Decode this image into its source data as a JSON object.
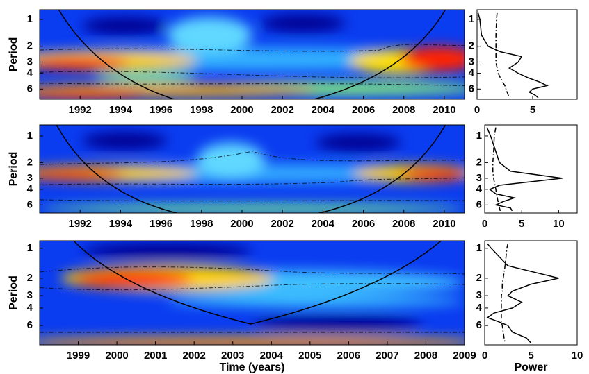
{
  "chart_data": [
    {
      "type": "wavelet",
      "ylabel": "Period",
      "xlim": [
        1990,
        2011
      ],
      "xticks": [
        1992,
        1994,
        1996,
        1998,
        2000,
        2002,
        2004,
        2006,
        2008,
        2010
      ],
      "ylim": [
        0.78,
        7.8
      ],
      "yticks": [
        1,
        2,
        3,
        4,
        6
      ],
      "y_log_scale": true,
      "y_reversed": true,
      "spectrum": {
        "xlim": [
          0,
          9
        ],
        "xticks": [
          0,
          5
        ],
        "periods": [
          0.85,
          1,
          1.5,
          2,
          2.3,
          2.6,
          3,
          3.5,
          4,
          4.5,
          5,
          5.5,
          6,
          6.5,
          7,
          7.5
        ],
        "series": [
          {
            "color": "#000000",
            "line_style": "solid",
            "values": [
              0.1,
              0.25,
              0.4,
              1,
              2.1,
              4,
              3.7,
              2.9,
              3.7,
              4.6,
              5.6,
              6.3,
              5,
              4.7,
              5.2,
              5.5
            ]
          },
          {
            "color": "#000000",
            "line_style": "dash-dot",
            "values": [
              1.8,
              1.75,
              1.7,
              1.7,
              1.7,
              1.7,
              1.7,
              1.8,
              1.9,
              2.1,
              2.3,
              2.5,
              2.6,
              2.7,
              2.8,
              2.9
            ]
          }
        ]
      }
    },
    {
      "type": "wavelet",
      "ylabel": "Period",
      "xlim": [
        1990,
        2011
      ],
      "xticks": [
        1992,
        1994,
        1996,
        1998,
        2000,
        2002,
        2004,
        2006,
        2008,
        2010
      ],
      "ylim": [
        0.75,
        7.4
      ],
      "yticks": [
        1,
        2,
        3,
        4,
        6
      ],
      "y_log_scale": true,
      "y_reversed": true,
      "spectrum": {
        "xlim": [
          0,
          12.5
        ],
        "xticks": [
          0,
          5,
          10
        ],
        "periods": [
          0.8,
          1,
          1.5,
          2,
          2.5,
          3,
          3.3,
          3.6,
          4,
          4.5,
          5,
          5.5,
          6,
          6.5,
          7
        ],
        "series": [
          {
            "color": "#000000",
            "line_style": "solid",
            "values": [
              0.3,
              0.8,
              1.5,
              2,
              3.5,
              10.5,
              6,
              2,
              0.7,
              1.5,
              4,
              2.5,
              1.5,
              3.5,
              3.7
            ]
          },
          {
            "color": "#000000",
            "line_style": "dash-dot",
            "values": [
              1.5,
              1.3,
              1.2,
              1.1,
              1.1,
              1.2,
              1.3,
              1.4,
              1.5,
              1.6,
              1.7,
              1.8,
              1.9,
              2,
              2.1
            ]
          }
        ]
      }
    },
    {
      "type": "wavelet",
      "ylabel": "Period",
      "xlabel": "Time (years)",
      "xlim": [
        1998,
        2009
      ],
      "xticks": [
        1999,
        2000,
        2001,
        2002,
        2003,
        2004,
        2005,
        2006,
        2007,
        2008,
        2009
      ],
      "ylim": [
        0.84,
        9.4
      ],
      "yticks": [
        1,
        2,
        3,
        4,
        6
      ],
      "y_log_scale": true,
      "y_reversed": true,
      "spectrum": {
        "xlabel": "Power",
        "xlim": [
          0,
          10
        ],
        "xticks": [
          0,
          5,
          10
        ],
        "periods": [
          0.9,
          1,
          1.5,
          2,
          2.3,
          2.7,
          3,
          3.5,
          4,
          4.5,
          5,
          5.5,
          6,
          7,
          8,
          9
        ],
        "series": [
          {
            "color": "#000000",
            "line_style": "solid",
            "values": [
              0.3,
              0.7,
              2.5,
              8,
              5,
              3,
              2.5,
              4,
              3,
              1,
              0.3,
              1.5,
              2.5,
              3,
              4.5,
              5
            ]
          },
          {
            "color": "#000000",
            "line_style": "dash-dot",
            "values": [
              2.5,
              2.4,
              2.2,
              2,
              1.9,
              1.9,
              1.8,
              1.8,
              1.8,
              1.8,
              1.8,
              1.8,
              1.9,
              2,
              2.1,
              2.2
            ]
          }
        ]
      }
    }
  ]
}
